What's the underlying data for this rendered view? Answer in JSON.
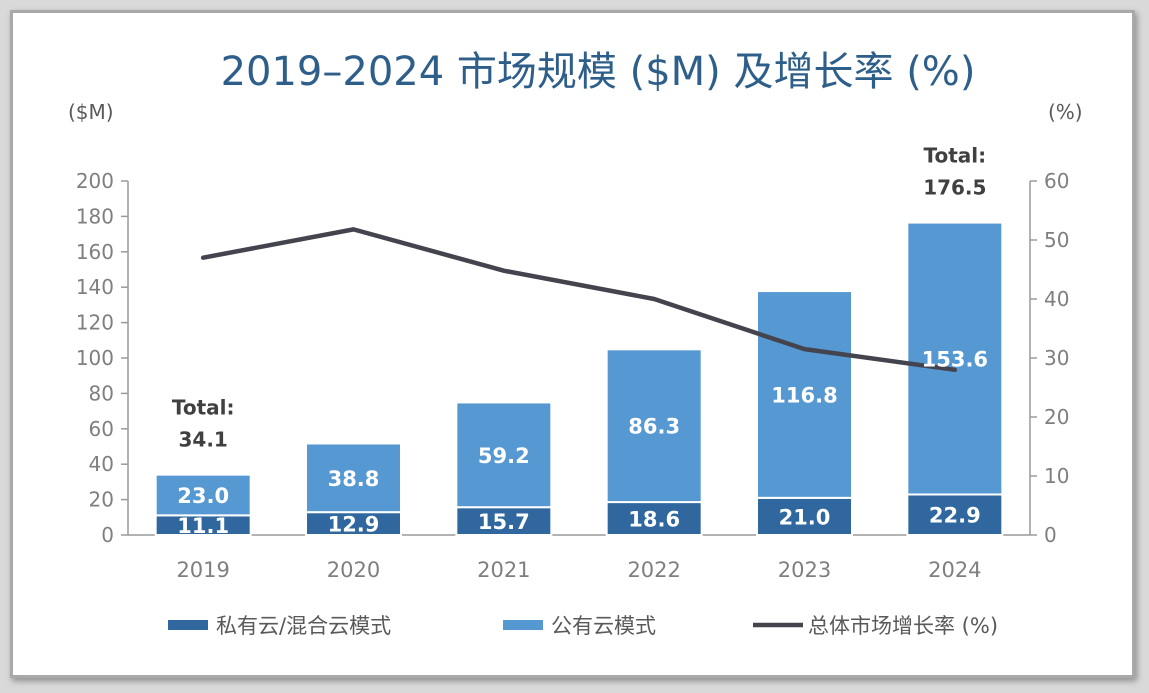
{
  "chart_data": {
    "type": "bar",
    "stacked": true,
    "title": "2019–2024 市场规模 ($M) 及增长率 (%)",
    "y_left_unit": "($M)",
    "y_right_unit": "(%)",
    "ylim_left": [
      0,
      200
    ],
    "ylim_right": [
      0,
      60
    ],
    "yticks_left": [
      0,
      20,
      40,
      60,
      80,
      100,
      120,
      140,
      160,
      180,
      200
    ],
    "yticks_right": [
      0,
      10,
      20,
      30,
      40,
      50,
      60
    ],
    "categories": [
      "2019",
      "2020",
      "2021",
      "2022",
      "2023",
      "2024"
    ],
    "series": [
      {
        "name": "私有云/混合云模式",
        "kind": "bar",
        "axis": "left",
        "color": "#2f679e",
        "values": [
          11.1,
          12.9,
          15.7,
          18.6,
          21.0,
          22.9
        ],
        "labels": [
          "11.1",
          "12.9",
          "15.7",
          "18.6",
          "21.0",
          "22.9"
        ]
      },
      {
        "name": "公有云模式",
        "kind": "bar",
        "axis": "left",
        "color": "#5698d2",
        "values": [
          23.0,
          38.8,
          59.2,
          86.3,
          116.8,
          153.6
        ],
        "labels": [
          "23.0",
          "38.8",
          "59.2",
          "86.3",
          "116.8",
          "153.6"
        ]
      },
      {
        "name": "总体市场增长率 (%)",
        "kind": "line",
        "axis": "right",
        "color": "#44444f",
        "values": [
          47,
          51.8,
          44.8,
          40,
          31.5,
          28
        ]
      }
    ],
    "annotations": [
      {
        "category": "2019",
        "label": "Total:",
        "value": "34.1"
      },
      {
        "category": "2024",
        "label": "Total:",
        "value": "176.5"
      }
    ],
    "legend_position": "bottom",
    "grid": false
  }
}
